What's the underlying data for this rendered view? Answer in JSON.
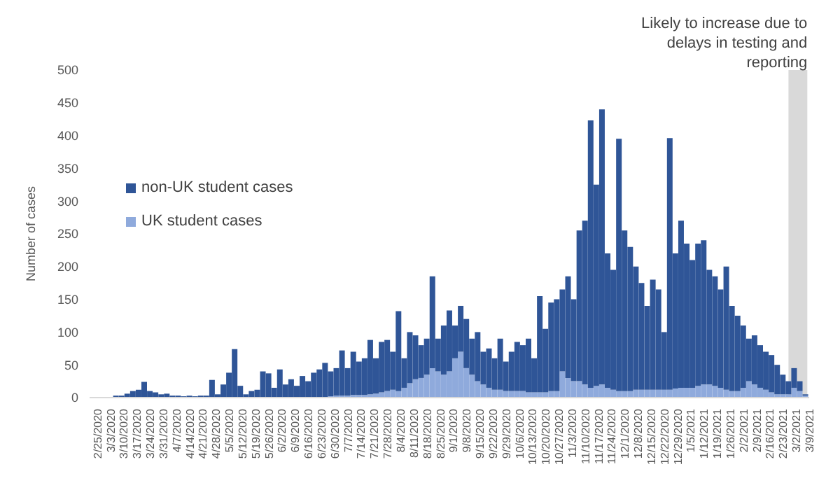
{
  "chart_data": {
    "type": "bar",
    "ylabel": "Number of cases",
    "stacked": true,
    "legend": "top left",
    "x": [
      "2020-02-25",
      "2020-02-28",
      "2020-03-02",
      "2020-03-05",
      "2020-03-08",
      "2020-03-11",
      "2020-03-14",
      "2020-03-17",
      "2020-03-20",
      "2020-03-23",
      "2020-03-26",
      "2020-03-29",
      "2020-04-01",
      "2020-04-04",
      "2020-04-07",
      "2020-04-10",
      "2020-04-13",
      "2020-04-16",
      "2020-04-19",
      "2020-04-22",
      "2020-04-25",
      "2020-04-28",
      "2020-05-01",
      "2020-05-04",
      "2020-05-07",
      "2020-05-10",
      "2020-05-13",
      "2020-05-16",
      "2020-05-19",
      "2020-05-22",
      "2020-05-25",
      "2020-05-28",
      "2020-05-31",
      "2020-06-03",
      "2020-06-06",
      "2020-06-09",
      "2020-06-12",
      "2020-06-15",
      "2020-06-18",
      "2020-06-21",
      "2020-06-24",
      "2020-06-27",
      "2020-06-30",
      "2020-07-03",
      "2020-07-06",
      "2020-07-09",
      "2020-07-12",
      "2020-07-15",
      "2020-07-18",
      "2020-07-21",
      "2020-07-24",
      "2020-07-27",
      "2020-07-30",
      "2020-08-02",
      "2020-08-05",
      "2020-08-08",
      "2020-08-11",
      "2020-08-14",
      "2020-08-17",
      "2020-08-20",
      "2020-08-23",
      "2020-08-26",
      "2020-08-29",
      "2020-09-01",
      "2020-09-04",
      "2020-09-07",
      "2020-09-10",
      "2020-09-13",
      "2020-09-16",
      "2020-09-19",
      "2020-09-22",
      "2020-09-25",
      "2020-09-28",
      "2020-10-01",
      "2020-10-04",
      "2020-10-07",
      "2020-10-10",
      "2020-10-13",
      "2020-10-16",
      "2020-10-19",
      "2020-10-22",
      "2020-10-25",
      "2020-10-28",
      "2020-10-31",
      "2020-11-03",
      "2020-11-06",
      "2020-11-09",
      "2020-11-12",
      "2020-11-15",
      "2020-11-18",
      "2020-11-21",
      "2020-11-24",
      "2020-11-27",
      "2020-11-30",
      "2020-12-03",
      "2020-12-06",
      "2020-12-09",
      "2020-12-12",
      "2020-12-15",
      "2020-12-18",
      "2020-12-21",
      "2020-12-24",
      "2020-12-27",
      "2020-12-30",
      "2021-01-02",
      "2021-01-05",
      "2021-01-08",
      "2021-01-11",
      "2021-01-14",
      "2021-01-17",
      "2021-01-20",
      "2021-01-23",
      "2021-01-26",
      "2021-01-29",
      "2021-02-01",
      "2021-02-04",
      "2021-02-07",
      "2021-02-10",
      "2021-02-13",
      "2021-02-16",
      "2021-02-19",
      "2021-02-22",
      "2021-02-25",
      "2021-02-28",
      "2021-03-03",
      "2021-03-06",
      "2021-03-09"
    ],
    "series": [
      {
        "name": "UK student cases",
        "color": "#8faadc",
        "values": [
          0,
          0,
          0,
          0,
          0,
          0,
          0,
          0,
          0,
          0,
          0,
          0,
          0,
          0,
          0,
          0,
          0,
          0,
          0,
          0,
          0,
          0,
          0,
          0,
          0,
          0,
          0,
          0,
          0,
          0,
          0,
          0,
          0,
          0,
          0,
          0,
          0,
          0,
          0,
          0,
          0,
          0,
          2,
          3,
          3,
          3,
          4,
          4,
          4,
          5,
          6,
          8,
          10,
          12,
          10,
          15,
          22,
          28,
          30,
          35,
          45,
          40,
          35,
          40,
          60,
          70,
          45,
          35,
          25,
          20,
          15,
          12,
          12,
          10,
          10,
          10,
          10,
          8,
          8,
          8,
          8,
          10,
          10,
          40,
          30,
          25,
          25,
          20,
          15,
          18,
          20,
          15,
          12,
          10,
          10,
          10,
          12,
          12,
          12,
          12,
          12,
          12,
          12,
          14,
          15,
          15,
          15,
          18,
          20,
          20,
          18,
          15,
          12,
          10,
          10,
          15,
          25,
          20,
          15,
          12,
          8,
          5,
          5,
          5,
          15,
          10,
          3
        ]
      },
      {
        "name": "non-UK student cases",
        "color": "#2f5597",
        "values": [
          0,
          0,
          0,
          0,
          3,
          3,
          6,
          10,
          12,
          24,
          10,
          8,
          5,
          6,
          3,
          3,
          2,
          3,
          2,
          3,
          3,
          27,
          5,
          20,
          38,
          74,
          18,
          5,
          10,
          12,
          40,
          37,
          15,
          43,
          20,
          28,
          18,
          33,
          25,
          38,
          43,
          53,
          38,
          42,
          69,
          42,
          66,
          51,
          56,
          83,
          54,
          77,
          78,
          58,
          122,
          45,
          78,
          67,
          50,
          55,
          140,
          50,
          75,
          93,
          50,
          70,
          75,
          55,
          75,
          50,
          60,
          48,
          78,
          45,
          60,
          75,
          70,
          82,
          52,
          147,
          97,
          135,
          140,
          125,
          155,
          125,
          230,
          250,
          408,
          307,
          420,
          205,
          183,
          385,
          245,
          220,
          188,
          163,
          128,
          168,
          153,
          88,
          384,
          206,
          255,
          220,
          195,
          217,
          220,
          175,
          167,
          150,
          188,
          130,
          115,
          95,
          65,
          75,
          65,
          58,
          57,
          45,
          30,
          20,
          30,
          15,
          2
        ]
      }
    ],
    "xlim": [
      "2020-02-23",
      "2021-03-11"
    ],
    "xticks": [
      {
        "value": "2020-02-25",
        "label": "2/25/2020"
      },
      {
        "value": "2020-03-03",
        "label": "3/3/2020"
      },
      {
        "value": "2020-03-10",
        "label": "3/10/2020"
      },
      {
        "value": "2020-03-17",
        "label": "3/17/2020"
      },
      {
        "value": "2020-03-24",
        "label": "3/24/2020"
      },
      {
        "value": "2020-03-31",
        "label": "3/31/2020"
      },
      {
        "value": "2020-04-07",
        "label": "4/7/2020"
      },
      {
        "value": "2020-04-14",
        "label": "4/14/2020"
      },
      {
        "value": "2020-04-21",
        "label": "4/21/2020"
      },
      {
        "value": "2020-04-28",
        "label": "4/28/2020"
      },
      {
        "value": "2020-05-05",
        "label": "5/5/2020"
      },
      {
        "value": "2020-05-12",
        "label": "5/12/2020"
      },
      {
        "value": "2020-05-19",
        "label": "5/19/2020"
      },
      {
        "value": "2020-05-26",
        "label": "5/26/2020"
      },
      {
        "value": "2020-06-02",
        "label": "6/2/2020"
      },
      {
        "value": "2020-06-09",
        "label": "6/9/2020"
      },
      {
        "value": "2020-06-16",
        "label": "6/16/2020"
      },
      {
        "value": "2020-06-23",
        "label": "6/23/2020"
      },
      {
        "value": "2020-06-30",
        "label": "6/30/2020"
      },
      {
        "value": "2020-07-07",
        "label": "7/7/2020"
      },
      {
        "value": "2020-07-14",
        "label": "7/14/2020"
      },
      {
        "value": "2020-07-21",
        "label": "7/21/2020"
      },
      {
        "value": "2020-07-28",
        "label": "7/28/2020"
      },
      {
        "value": "2020-08-04",
        "label": "8/4/2020"
      },
      {
        "value": "2020-08-11",
        "label": "8/11/2020"
      },
      {
        "value": "2020-08-18",
        "label": "8/18/2020"
      },
      {
        "value": "2020-08-25",
        "label": "8/25/2020"
      },
      {
        "value": "2020-09-01",
        "label": "9/1/2020"
      },
      {
        "value": "2020-09-08",
        "label": "9/8/2020"
      },
      {
        "value": "2020-09-15",
        "label": "9/15/2020"
      },
      {
        "value": "2020-09-22",
        "label": "9/22/2020"
      },
      {
        "value": "2020-09-29",
        "label": "9/29/2020"
      },
      {
        "value": "2020-10-06",
        "label": "10/6/2020"
      },
      {
        "value": "2020-10-13",
        "label": "10/13/2020"
      },
      {
        "value": "2020-10-20",
        "label": "10/20/2020"
      },
      {
        "value": "2020-10-27",
        "label": "10/27/2020"
      },
      {
        "value": "2020-11-03",
        "label": "11/3/2020"
      },
      {
        "value": "2020-11-10",
        "label": "11/10/2020"
      },
      {
        "value": "2020-11-17",
        "label": "11/17/2020"
      },
      {
        "value": "2020-11-24",
        "label": "11/24/2020"
      },
      {
        "value": "2020-12-01",
        "label": "12/1/2020"
      },
      {
        "value": "2020-12-08",
        "label": "12/8/2020"
      },
      {
        "value": "2020-12-15",
        "label": "12/15/2020"
      },
      {
        "value": "2020-12-22",
        "label": "12/22/2020"
      },
      {
        "value": "2020-12-29",
        "label": "12/29/2020"
      },
      {
        "value": "2021-01-05",
        "label": "1/5/2021"
      },
      {
        "value": "2021-01-12",
        "label": "1/12/2021"
      },
      {
        "value": "2021-01-19",
        "label": "1/19/2021"
      },
      {
        "value": "2021-01-26",
        "label": "1/26/2021"
      },
      {
        "value": "2021-02-02",
        "label": "2/2/2021"
      },
      {
        "value": "2021-02-09",
        "label": "2/9/2021"
      },
      {
        "value": "2021-02-16",
        "label": "2/16/2021"
      },
      {
        "value": "2021-02-23",
        "label": "2/23/2021"
      },
      {
        "value": "2021-03-02",
        "label": "3/2/2021"
      },
      {
        "value": "2021-03-09",
        "label": "3/9/2021"
      }
    ],
    "ylim": [
      0,
      500
    ],
    "yticks": [
      0,
      50,
      100,
      150,
      200,
      250,
      300,
      350,
      400,
      450,
      500
    ],
    "bands": [
      {
        "axis": "x",
        "from": "2021-02-28",
        "to": "2021-03-10",
        "label": "Likely to increase due to delays in testing and reporting",
        "color": "#d9d9d9"
      }
    ]
  }
}
